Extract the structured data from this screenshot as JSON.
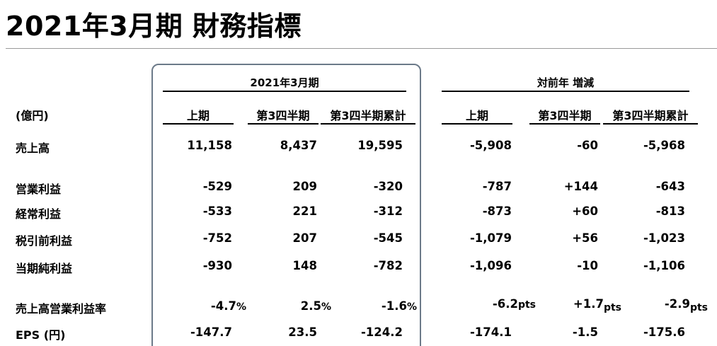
{
  "title": "2021年3月期 財務指標",
  "group_fy": "2021年3月期",
  "group_yoy": "対前年 増減",
  "unit_label": "(億円)",
  "columns": [
    "上期",
    "第3四半期",
    "第3四半期累計",
    "上期",
    "第3四半期",
    "第3四半期累計"
  ],
  "pct_unit": "%",
  "pts_unit": "pts",
  "rows": [
    {
      "label": "売上高",
      "values": [
        "11,158",
        "8,437",
        "19,595",
        "-5,908",
        "-60",
        "-5,968"
      ]
    },
    {
      "label": "営業利益",
      "values": [
        "-529",
        "209",
        "-320",
        "-787",
        "+144",
        "-643"
      ]
    },
    {
      "label": "経常利益",
      "values": [
        "-533",
        "221",
        "-312",
        "-873",
        "+60",
        "-813"
      ]
    },
    {
      "label": "税引前利益",
      "values": [
        "-752",
        "207",
        "-545",
        "-1,079",
        "+56",
        "-1,023"
      ]
    },
    {
      "label": "当期純利益",
      "values": [
        "-930",
        "148",
        "-782",
        "-1,096",
        "-10",
        "-1,106"
      ]
    },
    {
      "label": "売上高営業利益率",
      "values": [
        "-4.7",
        "2.5",
        "-1.6",
        "-6.2",
        "+1.7",
        "-2.9"
      ]
    },
    {
      "label": "EPS (円)",
      "values": [
        "-147.7",
        "23.5",
        "-124.2",
        "-174.1",
        "-1.5",
        "-175.6"
      ]
    }
  ]
}
